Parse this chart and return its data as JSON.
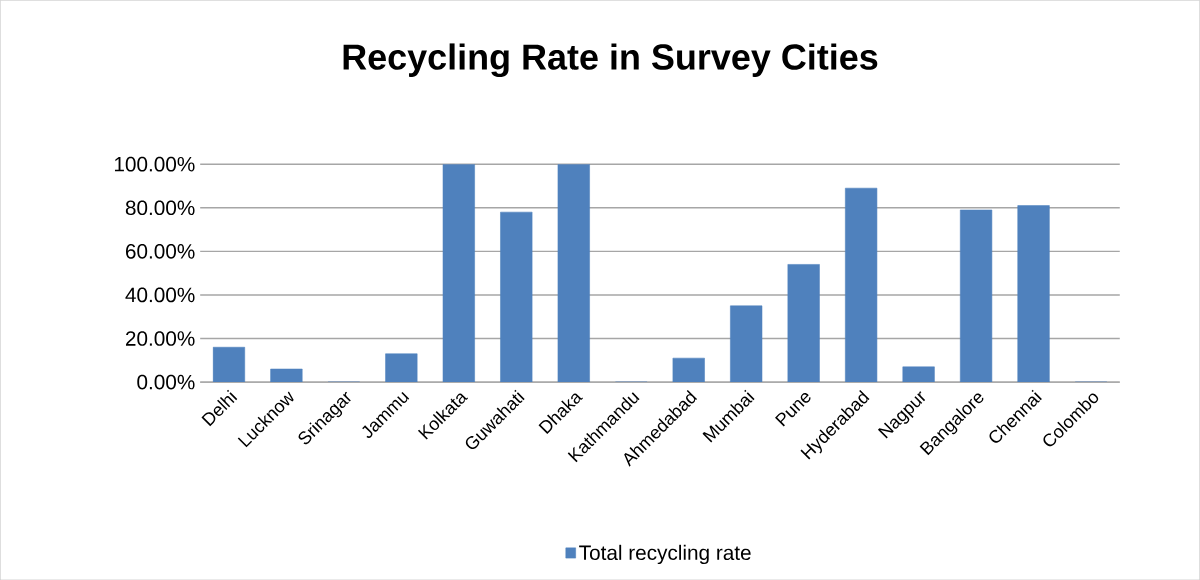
{
  "chart_data": {
    "type": "bar",
    "title": "Recycling Rate in Survey Cities",
    "categories": [
      "Delhi",
      "Lucknow",
      "Srinagar",
      "Jammu",
      "Kolkata",
      "Guwahati",
      "Dhaka",
      "Kathmandu",
      "Ahmedabad",
      "Mumbai",
      "Pune",
      "Hyderabad",
      "Nagpur",
      "Bangalore",
      "Chennai",
      "Colombo"
    ],
    "series": [
      {
        "name": "Total recycling rate",
        "color": "#4f81bd",
        "values": [
          16,
          6,
          0,
          13,
          100,
          78,
          100,
          0,
          11,
          35,
          54,
          89,
          7,
          79,
          81,
          0
        ]
      }
    ],
    "ylim": [
      0,
      100
    ],
    "yticks": [
      {
        "value": 0,
        "label": "0.00%"
      },
      {
        "value": 20,
        "label": "20.00%"
      },
      {
        "value": 40,
        "label": "40.00%"
      },
      {
        "value": 60,
        "label": "60.00%"
      },
      {
        "value": 80,
        "label": "80.00%"
      },
      {
        "value": 100,
        "label": "100.00%"
      }
    ],
    "grid": "y",
    "legend": "bottom"
  }
}
